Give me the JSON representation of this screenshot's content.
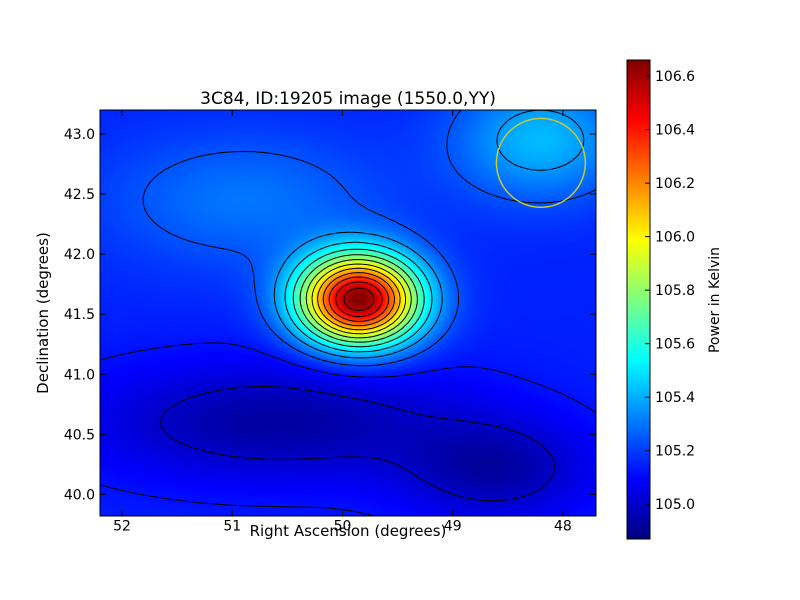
{
  "chart_data": {
    "type": "heatmap",
    "title": "3C84, ID:19205 image (1550.0,YY)",
    "xlabel": "Right Ascension (degrees)",
    "ylabel": "Declination (degrees)",
    "colorbar_label": "Power in Kelvin",
    "xlim": [
      52.2,
      47.7
    ],
    "ylim": [
      39.82,
      43.2
    ],
    "x_ticks": [
      {
        "value": 52,
        "label": "52"
      },
      {
        "value": 51,
        "label": "51"
      },
      {
        "value": 50,
        "label": "50"
      },
      {
        "value": 49,
        "label": "49"
      },
      {
        "value": 48,
        "label": "48"
      }
    ],
    "y_ticks": [
      {
        "value": 40.0,
        "label": "40.0"
      },
      {
        "value": 40.5,
        "label": "40.5"
      },
      {
        "value": 41.0,
        "label": "41.0"
      },
      {
        "value": 41.5,
        "label": "41.5"
      },
      {
        "value": 42.0,
        "label": "42.0"
      },
      {
        "value": 42.5,
        "label": "42.5"
      },
      {
        "value": 43.0,
        "label": "43.0"
      }
    ],
    "colorbar_range": [
      104.87,
      106.66
    ],
    "colorbar_ticks": [
      {
        "value": 105.0,
        "label": "105.0"
      },
      {
        "value": 105.2,
        "label": "105.2"
      },
      {
        "value": 105.4,
        "label": "105.4"
      },
      {
        "value": 105.6,
        "label": "105.6"
      },
      {
        "value": 105.8,
        "label": "105.8"
      },
      {
        "value": 106.0,
        "label": "106.0"
      },
      {
        "value": 106.2,
        "label": "106.2"
      },
      {
        "value": 106.4,
        "label": "106.4"
      },
      {
        "value": 106.6,
        "label": "106.6"
      }
    ],
    "colormap": [
      "#00007f",
      "#0000ff",
      "#007fff",
      "#00ffff",
      "#7fff7f",
      "#ffff00",
      "#ff7f00",
      "#ff0000",
      "#7f0000"
    ],
    "background_level": 105.15,
    "sources": [
      {
        "ra": 49.85,
        "dec": 41.62,
        "peak": 106.65,
        "sigma_ra": 0.38,
        "sigma_dec": 0.26
      },
      {
        "ra": 48.2,
        "dec": 42.95,
        "peak": 105.42,
        "sigma_ra": 0.55,
        "sigma_dec": 0.35
      },
      {
        "ra": 50.9,
        "dec": 42.45,
        "peak": 105.3,
        "sigma_ra": 0.9,
        "sigma_dec": 0.4
      },
      {
        "ra": 50.6,
        "dec": 40.6,
        "peak": 104.93,
        "sigma_ra": 1.2,
        "sigma_dec": 0.35
      },
      {
        "ra": 48.6,
        "dec": 40.2,
        "peak": 104.95,
        "sigma_ra": 0.6,
        "sigma_dec": 0.3
      }
    ],
    "beam_circle": {
      "ra": 48.2,
      "dec": 42.76,
      "radius_deg": 0.37,
      "color": "#c8c832"
    },
    "contour_color": "#000000"
  }
}
